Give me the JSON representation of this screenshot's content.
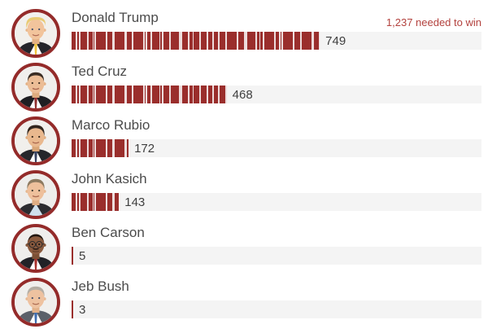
{
  "chart_data": {
    "type": "bar",
    "orientation": "horizontal",
    "title": "",
    "annotation": "1,237 needed to win",
    "max": 1237,
    "xlim": [
      0,
      1237
    ],
    "grid": false,
    "legend": false,
    "categories": [
      "Donald Trump",
      "Ted Cruz",
      "Marco Rubio",
      "John Kasich",
      "Ben Carson",
      "Jeb Bush"
    ],
    "values": [
      749,
      468,
      172,
      143,
      5,
      3
    ],
    "rows": [
      {
        "name": "Donald Trump",
        "value": 749,
        "value_label": "749"
      },
      {
        "name": "Ted Cruz",
        "value": 468,
        "value_label": "468"
      },
      {
        "name": "Marco Rubio",
        "value": 172,
        "value_label": "172"
      },
      {
        "name": "John Kasich",
        "value": 143,
        "value_label": "143"
      },
      {
        "name": "Ben Carson",
        "value": 5,
        "value_label": "5"
      },
      {
        "name": "Jeb Bush",
        "value": 3,
        "value_label": "3"
      }
    ],
    "colors": {
      "bar": "#9a2e2c",
      "gap": "#eddcdc",
      "track": "#f4f4f4",
      "ring": "#942b2a",
      "annotation": "#b3423e",
      "name": "#4b4b4b",
      "value": "#3f3f3f"
    }
  }
}
